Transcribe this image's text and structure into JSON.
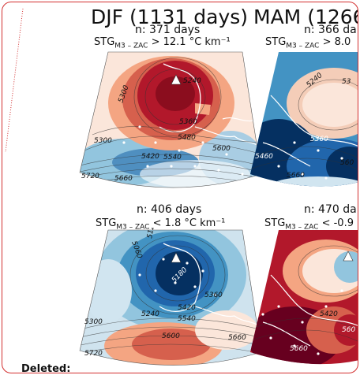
{
  "document": {
    "deleted_label": "Deleted:"
  },
  "figure": {
    "panels": [
      {
        "id": "djf-top",
        "title": "DJF (1131 days)",
        "n_label": "n: 371 days",
        "stg_prefix": "STG",
        "stg_sub": "M3 – ZAC",
        "stg_suffix": " > 12.1 °C km⁻¹",
        "contour_labels": [
          "5240",
          "5300",
          "5360",
          "5480",
          "5600",
          "5300",
          "5420",
          "5540",
          "5720",
          "5660"
        ]
      },
      {
        "id": "mam-top",
        "title": "MAM (1266",
        "n_label": "n: 366 da",
        "stg_prefix": "STG",
        "stg_sub": "M3 – ZAC",
        "stg_suffix": " > 8.0",
        "contour_labels": [
          "5240",
          "53",
          "5360",
          "5460",
          "560",
          "5660"
        ]
      },
      {
        "id": "djf-bottom",
        "n_label": "n: 406 days",
        "stg_prefix": "STG",
        "stg_sub": "M3 – ZAC",
        "stg_suffix": " < 1.8 °C km⁻¹",
        "contour_labels": [
          "5060",
          "512",
          "5180",
          "5360",
          "5240",
          "5420",
          "5540",
          "5300",
          "5600",
          "5660",
          "5720"
        ]
      },
      {
        "id": "mam-bottom",
        "n_label": "n: 470 da",
        "stg_prefix": "STG",
        "stg_sub": "M3 – ZAC",
        "stg_suffix": " < -0.9",
        "contour_labels": [
          "5420",
          "5660",
          "560"
        ]
      }
    ],
    "colors": {
      "deep_red": "#b2182b",
      "red": "#d6604d",
      "light_red": "#f4a582",
      "pale": "#fddbc7",
      "light_blue": "#92c5de",
      "blue": "#4393c3",
      "deep_blue": "#2166ac",
      "navy": "#053061"
    }
  }
}
